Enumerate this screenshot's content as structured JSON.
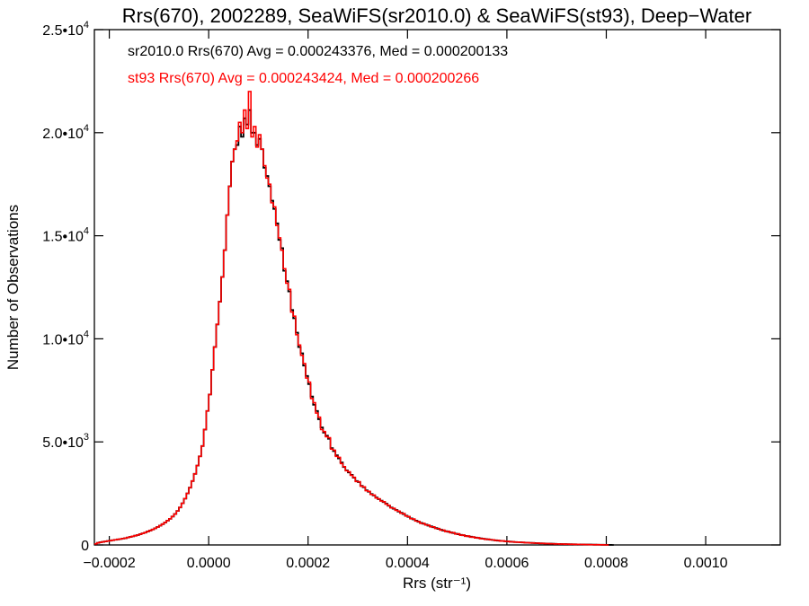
{
  "chart_data": {
    "type": "histogram-step",
    "title": "Rrs(670), 2002289, SeaWiFS(sr2010.0) & SeaWiFS(st93), Deep−Water",
    "xlabel": "Rrs (str⁻¹)",
    "ylabel": "Number of Observations",
    "xlim": [
      -0.00023,
      0.00115
    ],
    "ylim": [
      0,
      25000
    ],
    "x_ticks": [
      {
        "value": -0.0002,
        "label": "−0.0002"
      },
      {
        "value": 0.0,
        "label": "0.0000"
      },
      {
        "value": 0.0002,
        "label": "0.0002"
      },
      {
        "value": 0.0004,
        "label": "0.0004"
      },
      {
        "value": 0.0006,
        "label": "0.0006"
      },
      {
        "value": 0.0008,
        "label": "0.0008"
      },
      {
        "value": 0.001,
        "label": "0.0010"
      }
    ],
    "y_ticks": [
      {
        "value": 0,
        "mant": "0",
        "exp": ""
      },
      {
        "value": 5000,
        "mant": "5.0•10",
        "exp": "3"
      },
      {
        "value": 10000,
        "mant": "1.0•10",
        "exp": "4"
      },
      {
        "value": 15000,
        "mant": "1.5•10",
        "exp": "4"
      },
      {
        "value": 20000,
        "mant": "2.0•10",
        "exp": "4"
      },
      {
        "value": 25000,
        "mant": "2.5•10",
        "exp": "4"
      }
    ],
    "grid": false,
    "legend_position": "top-left",
    "bin_start": -0.00023,
    "bin_width": 5e-06,
    "series": [
      {
        "name": "sr2010.0",
        "color": "#000000",
        "stats": "sr2010.0 Rrs(670) Avg = 0.000243376, Med = 0.000200133",
        "values": [
          50,
          100,
          130,
          150,
          170,
          190,
          210,
          230,
          250,
          270,
          290,
          310,
          330,
          360,
          390,
          420,
          450,
          480,
          520,
          560,
          600,
          650,
          700,
          750,
          810,
          870,
          940,
          1010,
          1090,
          1180,
          1270,
          1380,
          1500,
          1650,
          1820,
          2020,
          2250,
          2500,
          2780,
          3100,
          3450,
          3850,
          4300,
          4800,
          5600,
          6500,
          7300,
          8500,
          9600,
          10700,
          11800,
          13000,
          14300,
          16000,
          17400,
          18600,
          19200,
          19400,
          20300,
          19800,
          20700,
          20400,
          21100,
          20000,
          20000,
          19400,
          19700,
          19200,
          18300,
          17900,
          17400,
          16700,
          16300,
          15600,
          14800,
          14400,
          13300,
          12800,
          12300,
          11400,
          11000,
          10300,
          9600,
          9300,
          8700,
          8200,
          7800,
          7200,
          6800,
          6500,
          6100,
          5700,
          5450,
          5300,
          5150,
          4700,
          4550,
          4350,
          4200,
          4000,
          3780,
          3620,
          3520,
          3400,
          3260,
          3100,
          3050,
          2870,
          2800,
          2650,
          2580,
          2470,
          2400,
          2300,
          2220,
          2150,
          2080,
          2000,
          1900,
          1820,
          1760,
          1700,
          1620,
          1560,
          1500,
          1420,
          1360,
          1290,
          1240,
          1180,
          1120,
          1070,
          1030,
          990,
          940,
          900,
          860,
          820,
          780,
          740,
          700,
          670,
          640,
          610,
          580,
          550,
          520,
          490,
          470,
          440,
          420,
          400,
          380,
          360,
          340,
          320,
          300,
          285,
          270,
          255,
          240,
          225,
          210,
          200,
          190,
          180,
          170,
          160,
          150,
          142,
          135,
          128,
          121,
          114,
          108,
          102,
          96,
          90,
          85,
          80,
          75,
          70,
          66,
          62,
          58,
          54,
          50,
          47,
          44,
          41,
          38,
          35,
          32,
          30,
          28,
          26,
          24,
          22,
          20,
          18,
          16,
          14,
          12,
          10,
          8,
          6,
          4,
          2,
          0
        ]
      },
      {
        "name": "st93",
        "color": "#ff0000",
        "stats": "st93 Rrs(670) Avg = 0.000243424, Med = 0.000200266",
        "values": [
          50,
          100,
          130,
          150,
          170,
          190,
          210,
          230,
          250,
          270,
          290,
          310,
          330,
          360,
          390,
          420,
          450,
          480,
          520,
          560,
          600,
          650,
          700,
          750,
          810,
          870,
          940,
          1010,
          1090,
          1180,
          1270,
          1380,
          1500,
          1650,
          1820,
          2020,
          2250,
          2500,
          2780,
          3100,
          3450,
          3850,
          4300,
          4800,
          5600,
          6500,
          7300,
          8500,
          9600,
          10700,
          11800,
          13000,
          14300,
          16000,
          17400,
          18600,
          19200,
          19600,
          20500,
          20000,
          21100,
          20200,
          22000,
          19800,
          20300,
          19300,
          19900,
          19200,
          18400,
          17800,
          17500,
          16600,
          16400,
          15500,
          14900,
          14300,
          13400,
          12700,
          12400,
          11300,
          11100,
          10200,
          9700,
          9200,
          8800,
          8100,
          7900,
          7100,
          6900,
          6400,
          6200,
          5600,
          5500,
          5250,
          5200,
          4650,
          4600,
          4300,
          4250,
          3950,
          3800,
          3600,
          3550,
          3380,
          3280,
          3080,
          3070,
          2850,
          2820,
          2630,
          2600,
          2450,
          2420,
          2280,
          2240,
          2130,
          2100,
          1980,
          1920,
          1800,
          1780,
          1680,
          1640,
          1540,
          1520,
          1400,
          1380,
          1270,
          1260,
          1160,
          1140,
          1050,
          1050,
          970,
          960,
          880,
          880,
          800,
          800,
          720,
          720,
          650,
          660,
          590,
          600,
          530,
          540,
          470,
          480,
          420,
          440,
          380,
          390,
          340,
          350,
          300,
          310,
          270,
          280,
          245,
          250,
          215,
          220,
          190,
          200,
          170,
          175,
          150,
          158,
          134,
          140,
          120,
          126,
          106,
          112,
          94,
          100,
          82,
          88,
          72,
          78,
          64,
          68,
          56,
          60,
          48,
          52,
          42,
          46,
          36,
          40,
          30,
          34,
          26,
          29,
          22,
          24,
          18,
          20,
          14,
          16,
          10,
          12,
          6,
          8,
          4,
          0
        ]
      }
    ]
  }
}
